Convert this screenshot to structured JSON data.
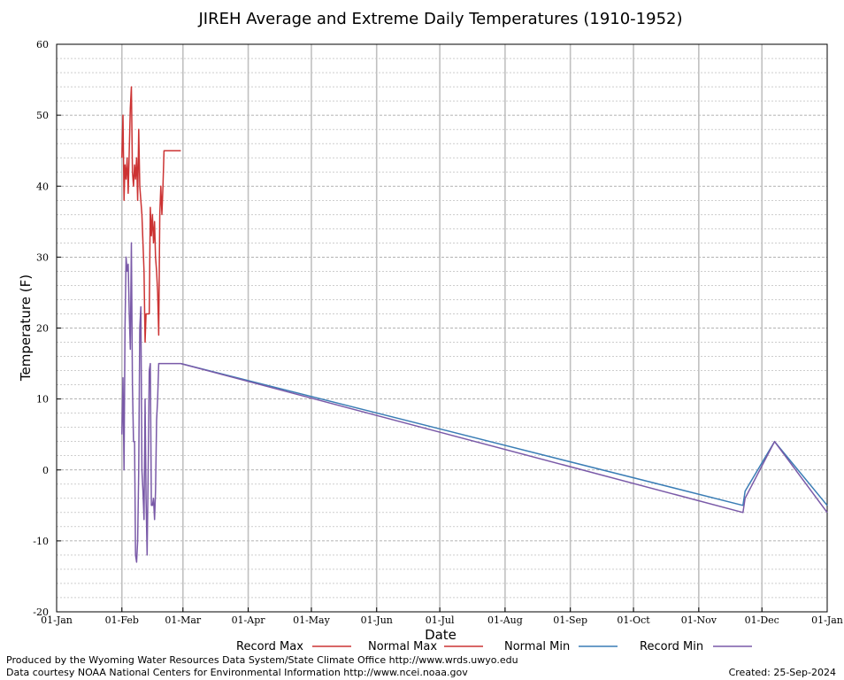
{
  "chart_data": {
    "type": "line",
    "title": "JIREH Average and Extreme Daily Temperatures (1910-1952)",
    "xlabel": "Date",
    "ylabel": "Temperature (F)",
    "ylim": [
      -20,
      60
    ],
    "yticks": [
      -20,
      -10,
      0,
      10,
      20,
      30,
      40,
      50,
      60
    ],
    "xlim_day": [
      0,
      366
    ],
    "xtick_labels": [
      "01-Jan",
      "01-Feb",
      "01-Mar",
      "01-Apr",
      "01-May",
      "01-Jun",
      "01-Jul",
      "01-Aug",
      "01-Sep",
      "01-Oct",
      "01-Nov",
      "01-Dec",
      "01-Jan"
    ],
    "xtick_days": [
      0,
      31,
      60,
      91,
      121,
      152,
      182,
      213,
      244,
      274,
      305,
      335,
      366
    ],
    "grid": true,
    "legend_position": "bottom",
    "series": [
      {
        "name": "Record Max",
        "color": "#cc3333",
        "x": [
          31,
          31.5,
          32,
          32.5,
          33,
          33.5,
          34,
          34.5,
          35,
          35.5,
          36,
          36.5,
          37,
          37.5,
          38,
          38.5,
          39,
          39.5,
          40,
          40.5,
          41,
          41.5,
          42,
          42.5,
          43,
          43.5,
          44,
          44.5,
          45,
          45.5,
          46,
          46.5,
          47,
          47.5,
          48,
          48.5,
          49,
          49.5,
          50,
          50.5,
          51,
          51.5,
          52,
          52.5,
          53,
          53.5,
          54,
          54.5,
          55,
          55.5,
          56,
          56.5,
          57,
          57.5,
          58,
          58.5,
          59
        ],
        "values": [
          44,
          50,
          38,
          43,
          41,
          44,
          39,
          45,
          51,
          54,
          42,
          40,
          43,
          41,
          44,
          38,
          48,
          40,
          38,
          36,
          32,
          28,
          18,
          22,
          22,
          22,
          22,
          37,
          33,
          36,
          32,
          35,
          30,
          28,
          25,
          19,
          36,
          40,
          36,
          40,
          45,
          45,
          45,
          45,
          45,
          45,
          45,
          45,
          45,
          45,
          45,
          45,
          45,
          45,
          45,
          45,
          45
        ]
      },
      {
        "name": "Normal Max",
        "color": "#cc3333",
        "x": [],
        "values": []
      },
      {
        "name": "Normal Min",
        "color": "#3a7db5",
        "x": [
          59,
          326,
          327,
          341,
          366
        ],
        "values": [
          15,
          -5,
          -3,
          4,
          -5
        ]
      },
      {
        "name": "Record Min",
        "color": "#7a5aa8",
        "x": [
          31,
          31.5,
          32,
          32.5,
          33,
          33.5,
          34,
          34.5,
          35,
          35.5,
          36,
          36.5,
          37,
          37.5,
          38,
          38.5,
          39,
          39.5,
          40,
          40.5,
          41,
          41.5,
          42,
          42.5,
          43,
          43.5,
          44,
          44.5,
          45,
          45.5,
          46,
          46.5,
          47,
          47.5,
          48,
          48.5,
          49,
          49.5,
          50,
          50.5,
          51,
          51.5,
          52,
          52.5,
          53,
          53.5,
          54,
          54.5,
          55,
          55.5,
          56,
          56.5,
          57,
          57.5,
          58,
          58.5,
          59,
          326,
          327,
          341,
          366
        ],
        "values": [
          5,
          13,
          0,
          20,
          30,
          28,
          29,
          22,
          17,
          32,
          12,
          4,
          4,
          -12,
          -13,
          -10,
          0,
          20,
          23,
          0,
          -3,
          -7,
          10,
          -4,
          -12,
          0,
          14,
          15,
          -5,
          -5,
          -4,
          -7,
          -3,
          7,
          10,
          15,
          15,
          15,
          15,
          15,
          15,
          15,
          15,
          15,
          15,
          15,
          15,
          15,
          15,
          15,
          15,
          15,
          15,
          15,
          15,
          15,
          15,
          -6,
          -4,
          4,
          -6
        ]
      }
    ]
  },
  "footer": {
    "produced_by": "Produced by the Wyoming Water Resources Data System/State Climate Office http://www.wrds.uwyo.edu",
    "courtesy": "Data courtesy NOAA National Centers for Environmental Information http://www.ncei.noaa.gov",
    "created": "Created: 25-Sep-2024"
  }
}
